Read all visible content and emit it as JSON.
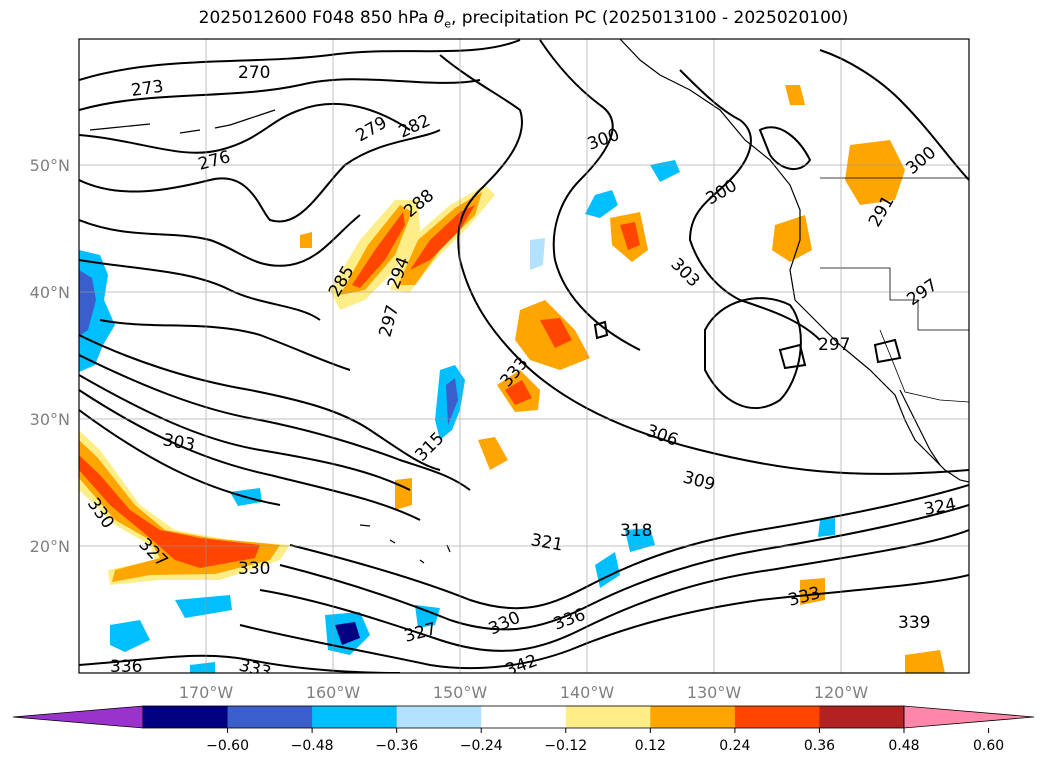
{
  "title": {
    "prefix": "2025012600 F048 850 hPa ",
    "theta": "θ",
    "sub": "e",
    "suffix": ", precipitation PC (2025013100 - 2025020100)"
  },
  "map": {
    "lat_labels": [
      "50°N",
      "40°N",
      "30°N",
      "20°N"
    ],
    "lon_labels": [
      "170°W",
      "160°W",
      "150°W",
      "140°W",
      "130°W",
      "120°W"
    ],
    "gridlines": true
  },
  "contour_labels": [
    "270",
    "273",
    "276",
    "279",
    "282",
    "285",
    "288",
    "291",
    "294",
    "297",
    "297",
    "297",
    "300",
    "300",
    "300",
    "303",
    "303",
    "306",
    "309",
    "315",
    "318",
    "321",
    "324",
    "327",
    "327",
    "330",
    "330",
    "330",
    "333",
    "333",
    "333",
    "336",
    "336",
    "339",
    "342"
  ],
  "colorbar": {
    "colors": [
      "#9a33cc",
      "#000080",
      "#3a5fcd",
      "#00bfff",
      "#b2e2ff",
      "#ffffff",
      "#ffee88",
      "#ffa500",
      "#ff4500",
      "#b22222",
      "#ff88aa"
    ],
    "ticks": [
      "−0.60",
      "−0.48",
      "−0.36",
      "−0.24",
      "−0.12",
      "0.12",
      "0.24",
      "0.36",
      "0.48",
      "0.60"
    ],
    "extend": "both"
  }
}
